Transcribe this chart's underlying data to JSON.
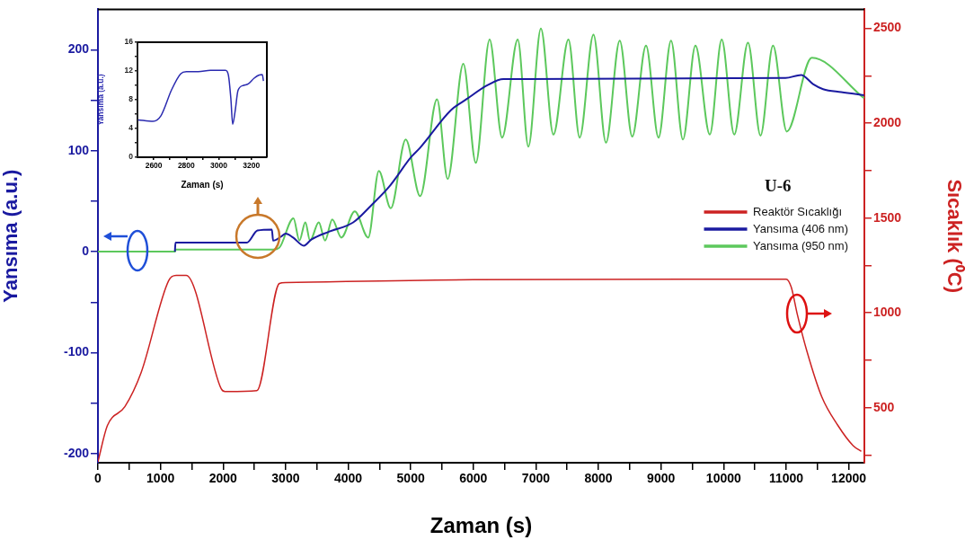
{
  "chart_data": [
    {
      "type": "line",
      "xlabel": "Zaman (s)",
      "ylabel": "Yansıma (a.u.)",
      "y2label": "Sıcaklık (⁰C)",
      "legend_title": "U-6",
      "legend": "center right",
      "marker": "none",
      "line_style": "solid",
      "xlim": [
        0,
        12250
      ],
      "xticks": [
        0,
        {
          "value": 500,
          "label": null
        },
        1000,
        {
          "value": 1500,
          "label": null
        },
        2000,
        {
          "value": 2500,
          "label": null
        },
        3000,
        {
          "value": 3500,
          "label": null
        },
        4000,
        {
          "value": 4500,
          "label": null
        },
        5000,
        {
          "value": 5500,
          "label": null
        },
        6000,
        {
          "value": 6500,
          "label": null
        },
        7000,
        {
          "value": 7500,
          "label": null
        },
        8000,
        {
          "value": 8500,
          "label": null
        },
        9000,
        {
          "value": 9500,
          "label": null
        },
        10000,
        {
          "value": 10500,
          "label": null
        },
        11000,
        {
          "value": 11500,
          "label": null
        },
        12000
      ],
      "ylim": [
        -209,
        240
      ],
      "yticks": [
        -200,
        {
          "value": -150,
          "label": null
        },
        -100,
        {
          "value": -50,
          "label": null
        },
        0,
        {
          "value": 50,
          "label": null
        },
        100,
        {
          "value": 150,
          "label": null
        },
        200
      ],
      "y2lim": [
        210,
        2600
      ],
      "y2ticks": [
        {
          "value": 250,
          "label": null
        },
        500,
        {
          "value": 750,
          "label": null
        },
        1000,
        {
          "value": 1250,
          "label": null
        },
        1500,
        {
          "value": 1750,
          "label": null
        },
        2000,
        {
          "value": 2250,
          "label": null
        },
        2500
      ],
      "series": [
        {
          "name": "Reaktör Sıcaklığı",
          "color": "#cc2222",
          "axis": "y2",
          "x": [
            0,
            150,
            430,
            690,
            1130,
            1250,
            1410,
            1970,
            2030,
            2540,
            2900,
            3000,
            6000,
            11000,
            11080,
            11180,
            11330,
            11570,
            11820,
            12070,
            12200
          ],
          "values": [
            215,
            405,
            505,
            685,
            1170,
            1198,
            1198,
            600,
            585,
            590,
            1155,
            1160,
            1175,
            1178,
            1137,
            990,
            800,
            557,
            410,
            300,
            270
          ]
        },
        {
          "name": "Yansıma (406 nm)",
          "color": "#1a1aa0",
          "x": [
            1230,
            1240,
            2380,
            2550,
            2780,
            2800,
            2930,
            3000,
            3120,
            3290,
            3410,
            3700,
            4080,
            4370,
            4650,
            5010,
            5150,
            5640,
            5890,
            6230,
            6480,
            6830,
            10990,
            11240,
            11430,
            11590,
            11880,
            12245
          ],
          "values": [
            0,
            9,
            9,
            21,
            22,
            11,
            15,
            18,
            14,
            6,
            12,
            20,
            29,
            46,
            64,
            94,
            103,
            140,
            151,
            165,
            171,
            171,
            172,
            175,
            166,
            161,
            158,
            155
          ]
        },
        {
          "name": "Yansıma (950 nm)",
          "color": "#5cc85c",
          "x": [
            0,
            1230,
            1240,
            2800,
            2900,
            3125,
            3220,
            3315,
            3390,
            3530,
            3630,
            3745,
            3890,
            4105,
            4320,
            4490,
            4680,
            4920,
            5150,
            5420,
            5590,
            5840,
            6040,
            6260,
            6460,
            6710,
            6880,
            7080,
            7280,
            7520,
            7700,
            7920,
            8120,
            8340,
            8540,
            8760,
            8960,
            9160,
            9350,
            9550,
            9780,
            9970,
            10170,
            10390,
            10590,
            10790,
            11010,
            11410,
            12245
          ],
          "values": [
            0,
            0,
            2,
            2,
            4,
            33,
            11,
            29,
            11,
            29,
            11,
            32,
            14,
            40,
            14,
            80,
            43,
            111,
            55,
            151,
            72,
            186,
            88,
            210,
            113,
            210,
            104,
            221,
            116,
            210,
            113,
            215,
            108,
            209,
            114,
            204,
            113,
            209,
            111,
            204,
            116,
            210,
            116,
            207,
            115,
            204,
            119,
            192,
            152
          ]
        }
      ]
    },
    {
      "type": "line",
      "xlabel": "Zaman (s)",
      "ylabel": "Yansıma (a.u.)",
      "marker": "none",
      "line_style": "solid",
      "xlim": [
        2500,
        3295
      ],
      "xticks": [
        2600,
        {
          "value": 2700,
          "label": null
        },
        2800,
        {
          "value": 2900,
          "label": null
        },
        3000,
        {
          "value": 3100,
          "label": null
        },
        3200
      ],
      "ylim": [
        0,
        16
      ],
      "yticks": [
        0,
        {
          "value": 2,
          "label": null
        },
        4,
        {
          "value": 6,
          "label": null
        },
        8,
        {
          "value": 10,
          "label": null
        },
        12,
        {
          "value": 14,
          "label": null
        },
        16
      ],
      "series": [
        {
          "color": "#2b2bb0",
          "x": [
            2504,
            2596,
            2645,
            2710,
            2765,
            2800,
            2874,
            2948,
            3041,
            3059,
            3074,
            3085,
            3100,
            3118,
            3152,
            3180,
            3217,
            3244,
            3267,
            3274
          ],
          "values": [
            5.2,
            5.0,
            5.8,
            9.4,
            11.6,
            11.9,
            11.9,
            12.1,
            12.1,
            11.4,
            8.1,
            4.6,
            6.4,
            9.3,
            10.0,
            10.2,
            11.0,
            11.4,
            11.5,
            10.6
          ]
        }
      ]
    }
  ]
}
